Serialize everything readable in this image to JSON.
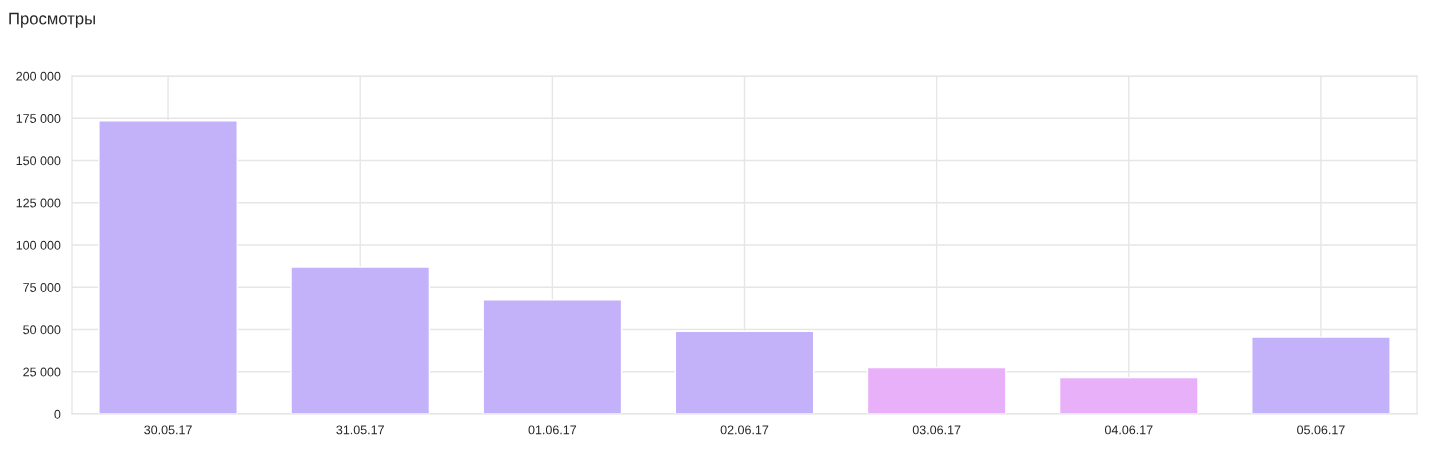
{
  "chart_data": {
    "type": "bar",
    "title": "Просмотры",
    "categories": [
      "30.05.17",
      "31.05.17",
      "01.06.17",
      "02.06.17",
      "03.06.17",
      "04.06.17",
      "05.06.17"
    ],
    "values": [
      173500,
      87000,
      67500,
      49000,
      27500,
      21500,
      45500
    ],
    "colors": [
      "#c3b1f9",
      "#c3b1f9",
      "#c3b1f9",
      "#c3b1f9",
      "#e8b0f8",
      "#e8b0f8",
      "#c3b1f9"
    ],
    "ylim": [
      0,
      200000
    ],
    "yticks": [
      0,
      {
        "value": 25000,
        "label": "25 000"
      },
      {
        "value": 50000,
        "label": "50 000"
      },
      {
        "value": 75000,
        "label": "75 000"
      },
      {
        "value": 100000,
        "label": "100 000"
      },
      {
        "value": 125000,
        "label": "125 000"
      },
      {
        "value": 150000,
        "label": "150 000"
      },
      {
        "value": 175000,
        "label": "175 000"
      },
      {
        "value": 200000,
        "label": "200 000"
      }
    ],
    "grid": true
  }
}
